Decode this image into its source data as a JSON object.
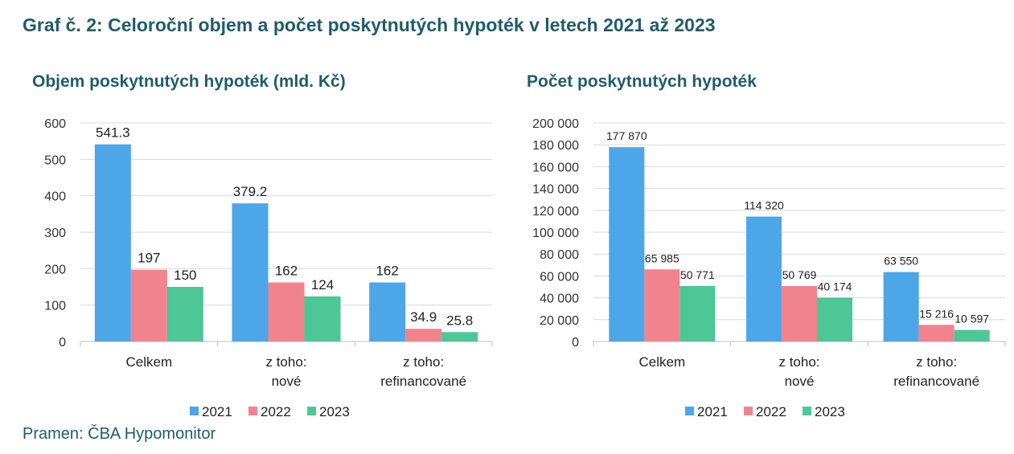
{
  "page": {
    "title": "Graf č. 2: Celoroční objem a počet poskytnutých hypoték v letech 2021 až 2023",
    "source": "Pramen: ČBA Hypomonitor"
  },
  "chart_data": [
    {
      "type": "bar",
      "title": "Objem poskytnutých hypoték (mld. Kč)",
      "categories": [
        [
          "Celkem"
        ],
        [
          "z toho:",
          "nové"
        ],
        [
          "z toho:",
          "refinancované"
        ]
      ],
      "series": [
        {
          "name": "2021",
          "values": [
            541.3,
            379.2,
            162
          ],
          "labels": [
            "541.3",
            "379.2",
            "162"
          ],
          "color": "#4da6e8"
        },
        {
          "name": "2022",
          "values": [
            197,
            162,
            34.9
          ],
          "labels": [
            "197",
            "162",
            "34.9"
          ],
          "color": "#f0838e"
        },
        {
          "name": "2023",
          "values": [
            150,
            124,
            25.8
          ],
          "labels": [
            "150",
            "124",
            "25.8"
          ],
          "color": "#4cc795"
        }
      ],
      "ylim": [
        0,
        600
      ],
      "yticks": [
        0,
        100,
        200,
        300,
        400,
        500,
        600
      ],
      "ytick_labels": [
        "0",
        "100",
        "200",
        "300",
        "400",
        "500",
        "600"
      ],
      "grid": true,
      "legend": "bottom"
    },
    {
      "type": "bar",
      "title": "Počet poskytnutých hypoték",
      "categories": [
        [
          "Celkem"
        ],
        [
          "z toho:",
          "nové"
        ],
        [
          "z toho:",
          "refinancované"
        ]
      ],
      "series": [
        {
          "name": "2021",
          "values": [
            177870,
            114320,
            63550
          ],
          "labels": [
            "177 870",
            "114 320",
            "63 550"
          ],
          "color": "#4da6e8"
        },
        {
          "name": "2022",
          "values": [
            65985,
            50769,
            15216
          ],
          "labels": [
            "65 985",
            "50 769",
            "15 216"
          ],
          "color": "#f0838e"
        },
        {
          "name": "2023",
          "values": [
            50771,
            40174,
            10597
          ],
          "labels": [
            "50 771",
            "40 174",
            "10 597"
          ],
          "color": "#4cc795"
        }
      ],
      "ylim": [
        0,
        200000
      ],
      "yticks": [
        0,
        20000,
        40000,
        60000,
        80000,
        100000,
        120000,
        140000,
        160000,
        180000,
        200000
      ],
      "ytick_labels": [
        "0",
        "20 000",
        "40 000",
        "60 000",
        "80 000",
        "100 000",
        "120 000",
        "140 000",
        "160 000",
        "180 000",
        "200 000"
      ],
      "grid": true,
      "legend": "bottom"
    }
  ]
}
